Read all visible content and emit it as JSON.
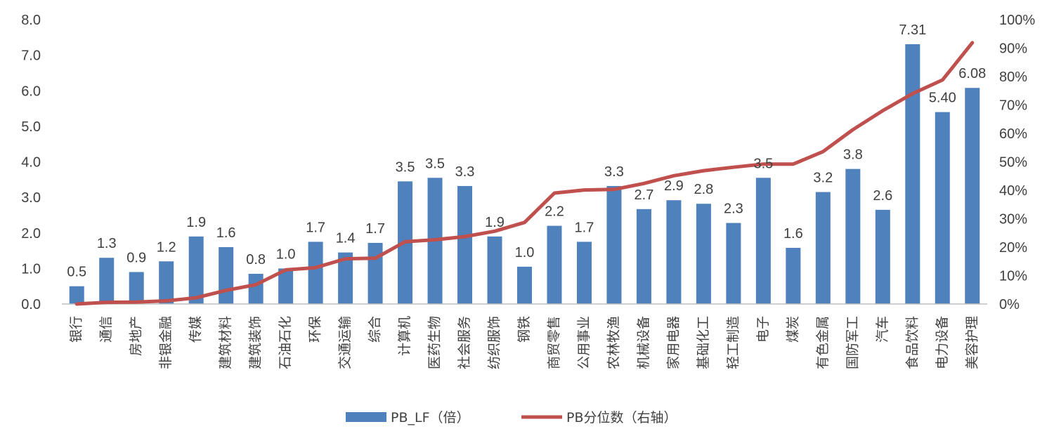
{
  "chart_data": {
    "type": "bar",
    "categories": [
      "银行",
      "通信",
      "房地产",
      "非银金融",
      "传媒",
      "建筑材料",
      "建筑装饰",
      "石油石化",
      "环保",
      "交通运输",
      "综合",
      "计算机",
      "医药生物",
      "社会服务",
      "纺织服饰",
      "钢铁",
      "商贸零售",
      "公用事业",
      "农林牧渔",
      "机械设备",
      "家用电器",
      "基础化工",
      "轻工制造",
      "电子",
      "煤炭",
      "有色金属",
      "国防军工",
      "汽车",
      "食品饮料",
      "电力设备",
      "美容护理"
    ],
    "series": [
      {
        "name": "PB_LF（倍）",
        "type": "bar",
        "axis": "left",
        "color": "#4f81bd",
        "values": [
          0.5,
          1.3,
          0.9,
          1.2,
          1.9,
          1.6,
          0.85,
          1.0,
          1.75,
          1.45,
          1.72,
          3.45,
          3.55,
          3.32,
          1.9,
          1.05,
          2.2,
          1.75,
          3.32,
          2.67,
          2.92,
          2.82,
          2.28,
          3.55,
          1.58,
          3.15,
          3.8,
          2.65,
          7.31,
          5.4,
          6.08
        ],
        "labels": [
          "0.5",
          "1.3",
          "0.9",
          "1.2",
          "1.9",
          "1.6",
          "0.8",
          "1.0",
          "1.7",
          "1.4",
          "1.7",
          "3.5",
          "3.5",
          "3.3",
          "1.9",
          "1.0",
          "2.2",
          "1.7",
          "3.3",
          "2.7",
          "2.9",
          "2.8",
          "2.3",
          "3.5",
          "1.6",
          "3.2",
          "3.8",
          "2.6",
          "7.31",
          "5.40",
          "6.08"
        ]
      },
      {
        "name": "PB分位数（右轴）",
        "type": "line",
        "axis": "right",
        "color": "#c0504d",
        "values": [
          0.0,
          0.006,
          0.007,
          0.011,
          0.022,
          0.048,
          0.068,
          0.12,
          0.128,
          0.159,
          0.161,
          0.219,
          0.226,
          0.237,
          0.256,
          0.287,
          0.39,
          0.401,
          0.403,
          0.424,
          0.451,
          0.469,
          0.481,
          0.492,
          0.492,
          0.536,
          0.613,
          0.68,
          0.74,
          0.788,
          0.919
        ]
      }
    ],
    "y_left": {
      "lim": [
        0,
        8
      ],
      "ticks": [
        "0.0",
        "1.0",
        "2.0",
        "3.0",
        "4.0",
        "5.0",
        "6.0",
        "7.0",
        "8.0"
      ]
    },
    "y_right": {
      "lim": [
        0,
        1
      ],
      "ticks": [
        "0%",
        "10%",
        "20%",
        "30%",
        "40%",
        "50%",
        "60%",
        "70%",
        "80%",
        "90%",
        "100%"
      ]
    },
    "grid": false,
    "legend_position": "bottom-center"
  }
}
